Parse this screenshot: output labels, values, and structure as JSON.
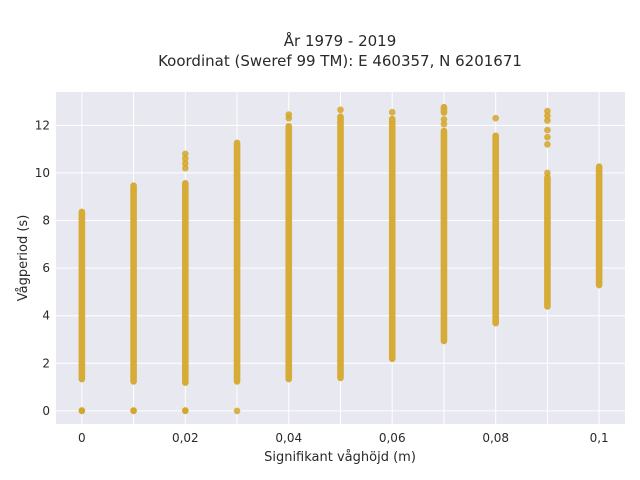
{
  "chart_data": {
    "type": "scatter",
    "title": "År 1979 - 2019",
    "subtitle": "Koordinat (Sweref 99 TM): E 460357, N 6201671",
    "xlabel": "Signifikant våghöjd (m)",
    "ylabel": "Vågperiod (s)",
    "xlim": [
      -0.005,
      0.105
    ],
    "ylim": [
      -0.55,
      13.4
    ],
    "x_ticks": [
      0,
      0.01,
      0.02,
      0.03,
      0.04,
      0.05,
      0.06,
      0.07,
      0.08,
      0.09,
      0.1
    ],
    "x_tick_labels": [
      "0",
      "",
      "0,02",
      "",
      "0,04",
      "",
      "0,06",
      "",
      "0,08",
      "",
      "0,1"
    ],
    "y_ticks": [
      0,
      2,
      4,
      6,
      8,
      10,
      12
    ],
    "y_tick_labels": [
      "0",
      "2",
      "4",
      "6",
      "8",
      "10",
      "12"
    ],
    "grid": true,
    "legend": "none",
    "colors": {
      "marker": "#d4a526",
      "plot_background": "#e8e8f0",
      "grid": "#ffffff"
    },
    "series": [
      {
        "groups": [
          {
            "x": 0,
            "ranges": [
              [
                1.2,
                8.5
              ]
            ],
            "extra_y": [
              0,
              0.02
            ]
          },
          {
            "x": 0.01,
            "ranges": [
              [
                1.1,
                9.6
              ]
            ],
            "extra_y": [
              0,
              0.02
            ]
          },
          {
            "x": 0.02,
            "ranges": [
              [
                1.05,
                9.7
              ]
            ],
            "extra_y": [
              0,
              0.02,
              10.2,
              10.4,
              10.6,
              10.8
            ]
          },
          {
            "x": 0.03,
            "ranges": [
              [
                1.1,
                11.4
              ]
            ],
            "extra_y": [
              0
            ]
          },
          {
            "x": 0.04,
            "ranges": [
              [
                1.2,
                12.1
              ]
            ],
            "extra_y": [
              12.3,
              12.45
            ]
          },
          {
            "x": 0.05,
            "ranges": [
              [
                1.25,
                12.5
              ]
            ],
            "extra_y": [
              12.65
            ]
          },
          {
            "x": 0.06,
            "ranges": [
              [
                2.05,
                12.4
              ]
            ],
            "extra_y": [
              12.55
            ]
          },
          {
            "x": 0.07,
            "ranges": [
              [
                2.8,
                11.9
              ],
              [
                12.4,
                12.9
              ]
            ],
            "extra_y": [
              12.05,
              12.25
            ]
          },
          {
            "x": 0.08,
            "ranges": [
              [
                3.55,
                11.7
              ]
            ],
            "extra_y": [
              12.3
            ]
          },
          {
            "x": 0.09,
            "ranges": [
              [
                4.25,
                9.95
              ]
            ],
            "extra_y": [
              10.0,
              11.2,
              11.5,
              11.8,
              12.2,
              12.4,
              12.6
            ]
          },
          {
            "x": 0.1,
            "ranges": [
              [
                5.15,
                10.4
              ]
            ],
            "extra_y": []
          }
        ]
      }
    ]
  }
}
